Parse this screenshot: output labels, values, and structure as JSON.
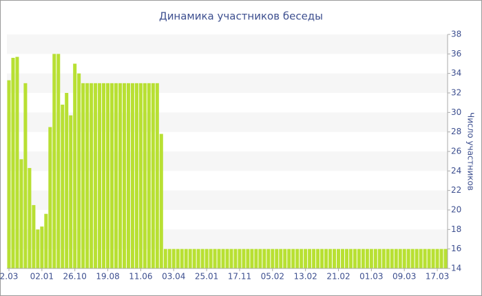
{
  "chart_data": {
    "type": "bar",
    "title": "Динамика участников беседы",
    "y_label": "Число участников",
    "categories": [
      "2.03",
      null,
      null,
      null,
      null,
      null,
      null,
      null,
      "02.01",
      null,
      null,
      null,
      null,
      null,
      null,
      null,
      "26.10",
      null,
      null,
      null,
      null,
      null,
      null,
      null,
      "19.08",
      null,
      null,
      null,
      null,
      null,
      null,
      null,
      "11.06",
      null,
      null,
      null,
      null,
      null,
      null,
      null,
      "03.04",
      null,
      null,
      null,
      null,
      null,
      null,
      null,
      "25.01",
      null,
      null,
      null,
      null,
      null,
      null,
      null,
      "17.11",
      null,
      null,
      null,
      null,
      null,
      null,
      null,
      "05.02",
      null,
      null,
      null,
      null,
      null,
      null,
      null,
      "13.02",
      null,
      null,
      null,
      null,
      null,
      null,
      null,
      "21.02",
      null,
      null,
      null,
      null,
      null,
      null,
      null,
      "01.03",
      null,
      null,
      null,
      null,
      null,
      null,
      null,
      "09.03",
      null,
      null,
      null,
      null,
      null,
      null,
      null,
      "17.03",
      null,
      null
    ],
    "values": [
      33.3,
      35.6,
      35.7,
      25.2,
      33,
      24.3,
      20.5,
      18,
      18.3,
      19.6,
      28.5,
      36,
      36,
      30.8,
      32,
      29.7,
      35,
      34,
      33,
      33,
      33,
      33,
      33,
      33,
      33,
      33,
      33,
      33,
      33,
      33,
      33,
      33,
      33,
      33,
      33,
      33,
      33,
      27.8,
      16,
      16,
      16,
      16,
      16,
      16,
      16,
      16,
      16,
      16,
      16,
      16,
      16,
      16,
      16,
      16,
      16,
      16,
      16,
      16,
      16,
      16,
      16,
      16,
      16,
      16,
      16,
      16,
      16,
      16,
      16,
      16,
      16,
      16,
      16,
      16,
      16,
      16,
      16,
      16,
      16,
      16,
      16,
      16,
      16,
      16,
      16,
      16,
      16,
      16,
      16,
      16,
      16,
      16,
      16,
      16,
      16,
      16,
      16,
      16,
      16,
      16,
      16,
      16,
      16,
      16,
      16,
      16,
      16
    ],
    "color": "#b8e033",
    "ylim": [
      14,
      38
    ],
    "yticks": [
      14,
      16,
      18,
      20,
      22,
      24,
      26,
      28,
      30,
      32,
      34,
      36,
      38
    ],
    "grid": true
  }
}
